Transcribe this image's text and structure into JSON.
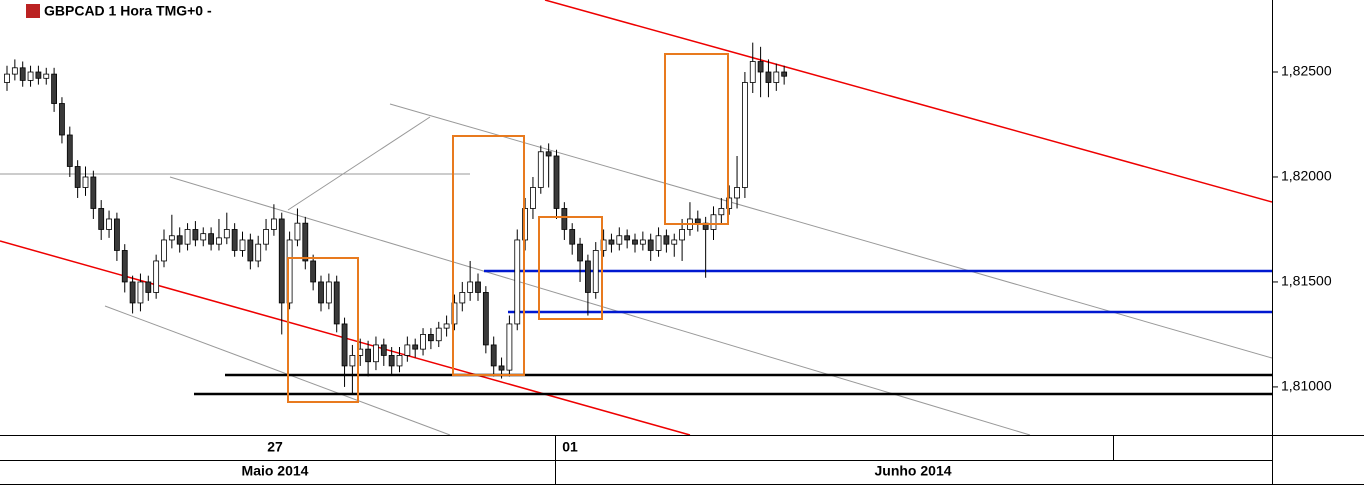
{
  "chart_data": {
    "type": "candlestick",
    "title": "GBPCAD 1 Hora TMG+0 -",
    "date_labels": [
      "27",
      "01"
    ],
    "month_labels": [
      "Maio 2014",
      "Junho 2014"
    ],
    "ylim": [
      1.80771,
      1.82843
    ],
    "yticks": [
      {
        "value": 1.81,
        "label": "1,81000"
      },
      {
        "value": 1.815,
        "label": "1,81500"
      },
      {
        "value": 1.82,
        "label": "1,82000"
      },
      {
        "value": 1.825,
        "label": "1,82500"
      }
    ],
    "up_color": "#ffffff",
    "down_color": "#3a3a3a",
    "open": [
      1.8245,
      1.8249,
      1.8252,
      1.8246,
      1.825,
      1.8247,
      1.8249,
      1.8235,
      1.822,
      1.8205,
      1.8195,
      1.82,
      1.8185,
      1.8175,
      1.818,
      1.8165,
      1.815,
      1.814,
      1.815,
      1.8145,
      1.816,
      1.817,
      1.8172,
      1.8168,
      1.8175,
      1.817,
      1.8173,
      1.8168,
      1.8171,
      1.8175,
      1.8165,
      1.817,
      1.816,
      1.8168,
      1.8175,
      1.818,
      1.814,
      1.817,
      1.8178,
      1.816,
      1.815,
      1.814,
      1.815,
      1.813,
      1.811,
      1.8115,
      1.8118,
      1.8112,
      1.812,
      1.8115,
      1.811,
      1.8115,
      1.812,
      1.8118,
      1.8125,
      1.8122,
      1.8128,
      1.813,
      1.814,
      1.8145,
      1.815,
      1.8145,
      1.812,
      1.811,
      1.8108,
      1.813,
      1.817,
      1.8185,
      1.8195,
      1.8212,
      1.821,
      1.8185,
      1.8175,
      1.8168,
      1.816,
      1.8145,
      1.8165,
      1.817,
      1.8168,
      1.8172,
      1.817,
      1.8168,
      1.817,
      1.8165,
      1.8172,
      1.8168,
      1.817,
      1.8175,
      1.818,
      1.8178,
      1.8175,
      1.8182,
      1.8185,
      1.819,
      1.8195,
      1.8245,
      1.8255,
      1.825,
      1.8245,
      1.825
    ],
    "high": [
      1.8253,
      1.8256,
      1.8255,
      1.8253,
      1.8253,
      1.8252,
      1.8252,
      1.8238,
      1.8224,
      1.8208,
      1.8205,
      1.8203,
      1.8189,
      1.8184,
      1.8183,
      1.8168,
      1.8153,
      1.8154,
      1.8153,
      1.8163,
      1.8175,
      1.8182,
      1.8176,
      1.8178,
      1.8179,
      1.8176,
      1.8176,
      1.818,
      1.8183,
      1.8178,
      1.8174,
      1.8173,
      1.8172,
      1.818,
      1.8187,
      1.8183,
      1.8174,
      1.8185,
      1.8181,
      1.8163,
      1.8153,
      1.8154,
      1.8153,
      1.8133,
      1.812,
      1.8123,
      1.8122,
      1.8124,
      1.8123,
      1.8119,
      1.8119,
      1.8124,
      1.8123,
      1.8128,
      1.8128,
      1.8131,
      1.8134,
      1.8144,
      1.815,
      1.816,
      1.8154,
      1.8148,
      1.8124,
      1.8114,
      1.8134,
      1.8175,
      1.819,
      1.82,
      1.8215,
      1.8216,
      1.8213,
      1.8188,
      1.8178,
      1.8171,
      1.8163,
      1.8169,
      1.8175,
      1.8173,
      1.8176,
      1.8175,
      1.8173,
      1.8174,
      1.8173,
      1.8176,
      1.8175,
      1.8173,
      1.818,
      1.8188,
      1.8184,
      1.8181,
      1.8186,
      1.819,
      1.8196,
      1.821,
      1.825,
      1.8264,
      1.8262,
      1.8256,
      1.8254,
      1.8253
    ],
    "low": [
      1.8241,
      1.8246,
      1.8243,
      1.8243,
      1.8244,
      1.8244,
      1.8231,
      1.8216,
      1.82,
      1.819,
      1.8191,
      1.818,
      1.817,
      1.8171,
      1.816,
      1.8145,
      1.8135,
      1.8136,
      1.8141,
      1.8142,
      1.8157,
      1.8166,
      1.8164,
      1.8165,
      1.8167,
      1.8167,
      1.8165,
      1.8165,
      1.8168,
      1.8162,
      1.8162,
      1.8156,
      1.8157,
      1.8165,
      1.8172,
      1.8125,
      1.8137,
      1.8167,
      1.8156,
      1.8146,
      1.8136,
      1.8137,
      1.8126,
      1.81,
      1.8097,
      1.811,
      1.8105,
      1.8108,
      1.811,
      1.8106,
      1.8107,
      1.8112,
      1.8114,
      1.8115,
      1.8118,
      1.8119,
      1.8124,
      1.8127,
      1.8136,
      1.8141,
      1.8141,
      1.8116,
      1.8105,
      1.8104,
      1.8105,
      1.8127,
      1.8165,
      1.818,
      1.8192,
      1.8195,
      1.818,
      1.817,
      1.8163,
      1.815,
      1.8134,
      1.8142,
      1.8162,
      1.8164,
      1.8165,
      1.8166,
      1.8164,
      1.8165,
      1.816,
      1.8162,
      1.8164,
      1.8162,
      1.816,
      1.8172,
      1.8174,
      1.8152,
      1.817,
      1.8178,
      1.8182,
      1.8185,
      1.819,
      1.824,
      1.8238,
      1.8238,
      1.8241,
      1.8244
    ],
    "close": [
      1.8249,
      1.8252,
      1.8246,
      1.825,
      1.8247,
      1.8249,
      1.8235,
      1.822,
      1.8205,
      1.8195,
      1.82,
      1.8185,
      1.8175,
      1.818,
      1.8165,
      1.815,
      1.814,
      1.815,
      1.8145,
      1.816,
      1.817,
      1.8172,
      1.8168,
      1.8175,
      1.817,
      1.8173,
      1.8168,
      1.8171,
      1.8175,
      1.8165,
      1.817,
      1.816,
      1.8168,
      1.8175,
      1.818,
      1.814,
      1.817,
      1.8178,
      1.816,
      1.815,
      1.814,
      1.815,
      1.813,
      1.811,
      1.8115,
      1.8118,
      1.8112,
      1.812,
      1.8115,
      1.811,
      1.8115,
      1.812,
      1.8118,
      1.8125,
      1.8122,
      1.8128,
      1.813,
      1.814,
      1.8145,
      1.815,
      1.8145,
      1.812,
      1.811,
      1.8108,
      1.813,
      1.817,
      1.8185,
      1.8195,
      1.8212,
      1.821,
      1.8185,
      1.8175,
      1.8168,
      1.816,
      1.8145,
      1.8165,
      1.817,
      1.8168,
      1.8172,
      1.817,
      1.8168,
      1.817,
      1.8165,
      1.8172,
      1.8168,
      1.817,
      1.8175,
      1.818,
      1.8178,
      1.8175,
      1.8182,
      1.8185,
      1.819,
      1.8195,
      1.8245,
      1.8255,
      1.825,
      1.8245,
      1.825,
      1.8248
    ]
  }
}
